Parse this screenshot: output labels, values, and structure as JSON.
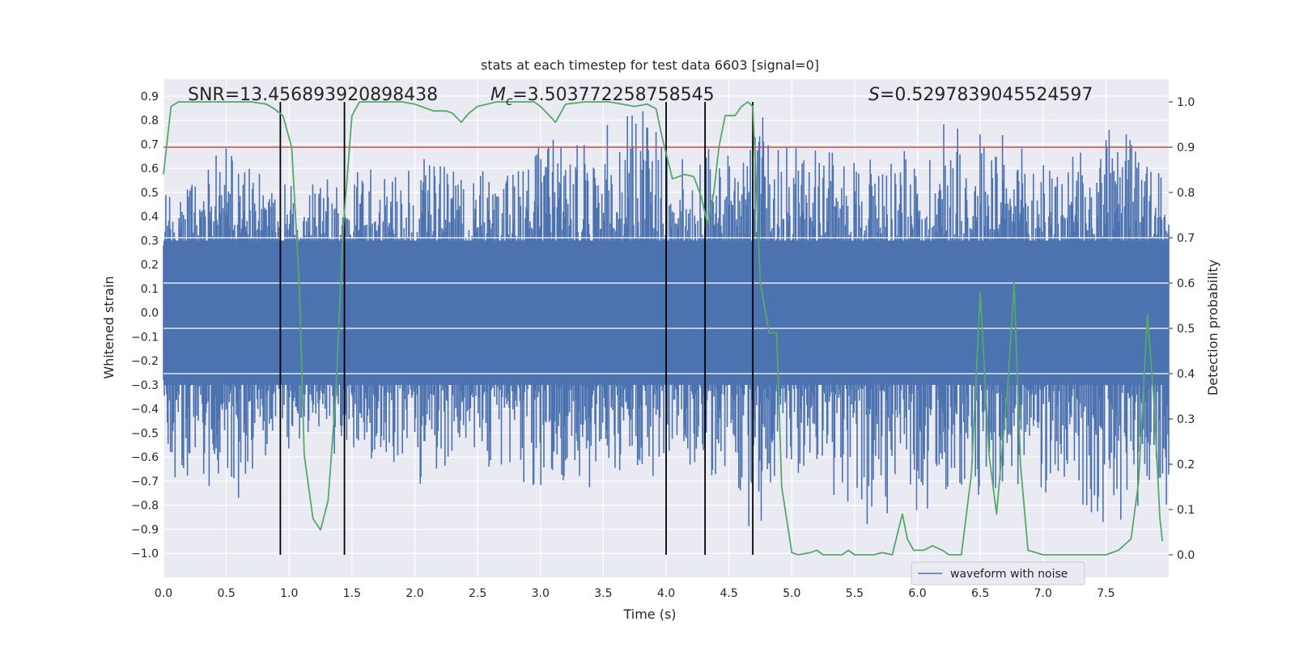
{
  "chart_data": {
    "type": "line",
    "title": "stats at each timestep for test data 6603 [signal=0]",
    "xlabel": "Time (s)",
    "ylabel_left": "Whitened strain",
    "ylabel_right": "Detection probability",
    "xlim": [
      0,
      8
    ],
    "ylim_left": [
      -1.1,
      0.97
    ],
    "ylim_right": [
      -0.05,
      1.05
    ],
    "x_ticks": [
      "0.0",
      "0.5",
      "1.0",
      "1.5",
      "2.0",
      "2.5",
      "3.0",
      "3.5",
      "4.0",
      "4.5",
      "5.0",
      "5.5",
      "6.0",
      "6.5",
      "7.0",
      "7.5"
    ],
    "y_ticks_left": [
      "-1.0",
      "-0.9",
      "-0.8",
      "-0.7",
      "-0.6",
      "-0.5",
      "-0.4",
      "-0.3",
      "-0.2",
      "-0.1",
      "0.0",
      "0.1",
      "0.2",
      "0.3",
      "0.4",
      "0.5",
      "0.6",
      "0.7",
      "0.8",
      "0.9"
    ],
    "y_ticks_right": [
      "0.0",
      "0.1",
      "0.2",
      "0.3",
      "0.4",
      "0.5",
      "0.6",
      "0.7",
      "0.8",
      "0.9",
      "1.0"
    ],
    "annotations": {
      "snr": "SNR=13.456893920898438",
      "mc_symbol": "M",
      "mc_sub": "c",
      "mc_value": "=3.503772258758545",
      "s_symbol": "S",
      "s_value": "=0.5297839045524597"
    },
    "legend": {
      "label": "waveform with noise",
      "placement": "lower-right"
    },
    "threshold": {
      "value": 0.9,
      "axis": "right"
    },
    "vertical_lines": [
      0.93,
      1.44,
      4.0,
      4.31,
      4.69
    ],
    "waveform": {
      "name": "waveform with noise",
      "axis": "left",
      "band_low": -0.3,
      "band_high": 0.3,
      "peak_max": [
        [
          0.0,
          0.5
        ],
        [
          0.1,
          0.5
        ],
        [
          0.3,
          0.62
        ],
        [
          0.45,
          0.73
        ],
        [
          0.7,
          0.6
        ],
        [
          0.9,
          0.55
        ],
        [
          1.25,
          0.55
        ],
        [
          1.5,
          0.6
        ],
        [
          1.75,
          0.62
        ],
        [
          1.9,
          0.58
        ],
        [
          2.1,
          0.65
        ],
        [
          2.4,
          0.58
        ],
        [
          2.7,
          0.6
        ],
        [
          3.1,
          0.75
        ],
        [
          3.4,
          0.7
        ],
        [
          3.5,
          0.8
        ],
        [
          3.85,
          0.88
        ],
        [
          4.05,
          0.62
        ],
        [
          4.4,
          0.73
        ],
        [
          4.6,
          0.6
        ],
        [
          4.75,
          0.85
        ],
        [
          5.0,
          0.7
        ],
        [
          5.25,
          0.68
        ],
        [
          5.5,
          0.65
        ],
        [
          5.75,
          0.75
        ],
        [
          6.0,
          0.62
        ],
        [
          6.27,
          0.9
        ],
        [
          6.4,
          0.8
        ],
        [
          6.55,
          0.78
        ],
        [
          6.8,
          0.7
        ],
        [
          7.1,
          0.62
        ],
        [
          7.4,
          0.7
        ],
        [
          7.55,
          0.8
        ],
        [
          7.75,
          0.72
        ],
        [
          7.9,
          0.6
        ],
        [
          8.0,
          0.5
        ]
      ],
      "peak_min": [
        [
          0.0,
          -0.55
        ],
        [
          0.15,
          -0.8
        ],
        [
          0.3,
          -0.7
        ],
        [
          0.45,
          -0.78
        ],
        [
          0.55,
          -0.82
        ],
        [
          0.8,
          -0.65
        ],
        [
          1.1,
          -0.6
        ],
        [
          1.4,
          -0.62
        ],
        [
          1.6,
          -0.6
        ],
        [
          1.9,
          -0.65
        ],
        [
          2.0,
          -0.78
        ],
        [
          2.3,
          -0.62
        ],
        [
          2.6,
          -0.65
        ],
        [
          2.95,
          -0.75
        ],
        [
          3.15,
          -0.7
        ],
        [
          3.45,
          -0.78
        ],
        [
          3.7,
          -0.62
        ],
        [
          3.95,
          -0.7
        ],
        [
          4.2,
          -0.65
        ],
        [
          4.5,
          -0.7
        ],
        [
          4.69,
          -0.93
        ],
        [
          4.9,
          -0.75
        ],
        [
          5.2,
          -0.7
        ],
        [
          5.6,
          -0.88
        ],
        [
          5.8,
          -0.85
        ],
        [
          5.85,
          -1.0
        ],
        [
          6.1,
          -0.8
        ],
        [
          6.4,
          -0.82
        ],
        [
          6.7,
          -0.72
        ],
        [
          7.2,
          -0.78
        ],
        [
          7.5,
          -0.88
        ],
        [
          7.7,
          -0.85
        ],
        [
          7.9,
          -0.7
        ],
        [
          8.0,
          -0.85
        ]
      ]
    },
    "probability": {
      "name": "Detection probability",
      "axis": "right",
      "points": [
        [
          0.0,
          0.84
        ],
        [
          0.06,
          0.99
        ],
        [
          0.12,
          1.0
        ],
        [
          0.3,
          1.0
        ],
        [
          0.5,
          1.0
        ],
        [
          0.7,
          1.0
        ],
        [
          0.82,
          0.995
        ],
        [
          0.88,
          0.985
        ],
        [
          0.95,
          0.97
        ],
        [
          1.02,
          0.9
        ],
        [
          1.08,
          0.6
        ],
        [
          1.12,
          0.22
        ],
        [
          1.19,
          0.08
        ],
        [
          1.25,
          0.055
        ],
        [
          1.31,
          0.12
        ],
        [
          1.37,
          0.35
        ],
        [
          1.43,
          0.72
        ],
        [
          1.5,
          0.97
        ],
        [
          1.56,
          1.0
        ],
        [
          1.7,
          1.0
        ],
        [
          1.9,
          1.0
        ],
        [
          2.0,
          0.995
        ],
        [
          2.1,
          0.985
        ],
        [
          2.15,
          0.98
        ],
        [
          2.25,
          0.98
        ],
        [
          2.3,
          0.975
        ],
        [
          2.37,
          0.955
        ],
        [
          2.43,
          0.975
        ],
        [
          2.5,
          0.99
        ],
        [
          2.65,
          1.0
        ],
        [
          2.95,
          1.0
        ],
        [
          3.0,
          0.99
        ],
        [
          3.07,
          0.97
        ],
        [
          3.12,
          0.955
        ],
        [
          3.2,
          0.995
        ],
        [
          3.35,
          1.0
        ],
        [
          3.55,
          1.0
        ],
        [
          3.75,
          0.99
        ],
        [
          3.85,
          0.995
        ],
        [
          3.92,
          0.985
        ],
        [
          3.97,
          0.92
        ],
        [
          4.05,
          0.83
        ],
        [
          4.15,
          0.84
        ],
        [
          4.22,
          0.835
        ],
        [
          4.28,
          0.79
        ],
        [
          4.33,
          0.73
        ],
        [
          4.38,
          0.8
        ],
        [
          4.42,
          0.9
        ],
        [
          4.47,
          0.97
        ],
        [
          4.55,
          0.97
        ],
        [
          4.6,
          0.99
        ],
        [
          4.65,
          1.0
        ],
        [
          4.69,
          0.99
        ],
        [
          4.75,
          0.6
        ],
        [
          4.82,
          0.49
        ],
        [
          4.88,
          0.49
        ],
        [
          4.92,
          0.15
        ],
        [
          5.0,
          0.005
        ],
        [
          5.05,
          0.0
        ],
        [
          5.15,
          0.005
        ],
        [
          5.2,
          0.01
        ],
        [
          5.25,
          0.0
        ],
        [
          5.4,
          0.0
        ],
        [
          5.45,
          0.01
        ],
        [
          5.5,
          0.0
        ],
        [
          5.65,
          0.0
        ],
        [
          5.72,
          0.005
        ],
        [
          5.8,
          0.0
        ],
        [
          5.88,
          0.09
        ],
        [
          5.92,
          0.035
        ],
        [
          5.97,
          0.01
        ],
        [
          6.05,
          0.01
        ],
        [
          6.12,
          0.02
        ],
        [
          6.2,
          0.01
        ],
        [
          6.25,
          0.0
        ],
        [
          6.35,
          0.0
        ],
        [
          6.43,
          0.18
        ],
        [
          6.5,
          0.58
        ],
        [
          6.57,
          0.22
        ],
        [
          6.63,
          0.09
        ],
        [
          6.72,
          0.38
        ],
        [
          6.77,
          0.6
        ],
        [
          6.82,
          0.2
        ],
        [
          6.88,
          0.01
        ],
        [
          7.0,
          0.0
        ],
        [
          7.5,
          0.0
        ],
        [
          7.6,
          0.01
        ],
        [
          7.7,
          0.035
        ],
        [
          7.76,
          0.16
        ],
        [
          7.83,
          0.53
        ],
        [
          7.88,
          0.35
        ],
        [
          7.93,
          0.08
        ],
        [
          7.95,
          0.03
        ]
      ]
    }
  }
}
